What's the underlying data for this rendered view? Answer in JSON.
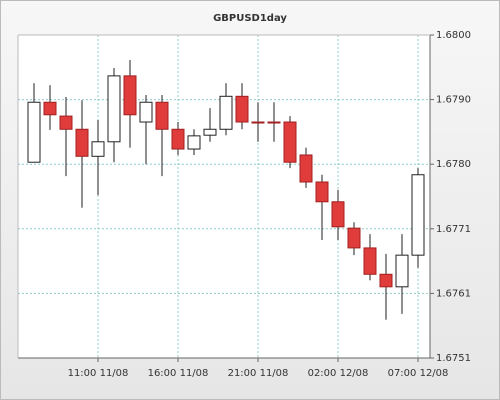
{
  "chart_data": {
    "type": "candlestick",
    "title": "GBPUSD1day",
    "categories": [
      null,
      null,
      null,
      null,
      "11:00 11/08",
      null,
      null,
      null,
      null,
      "16:00 11/08",
      null,
      null,
      null,
      null,
      "21:00 11/08",
      null,
      null,
      null,
      null,
      "02:00 12/08",
      null,
      null,
      null,
      null,
      "07:00 12/08"
    ],
    "open": [
      1.67807,
      1.67898,
      1.67877,
      1.67857,
      1.67816,
      1.67838,
      1.67938,
      1.67868,
      1.67898,
      1.67857,
      1.67827,
      1.67848,
      1.67857,
      1.67907,
      1.67868,
      1.67868,
      1.67868,
      1.67818,
      1.67777,
      1.67747,
      1.67707,
      1.67677,
      1.67637,
      1.67618,
      1.67666
    ],
    "high": [
      1.67927,
      1.67924,
      1.67906,
      1.67901,
      1.67871,
      1.6795,
      1.67962,
      1.67909,
      1.67909,
      1.67868,
      1.67857,
      1.67889,
      1.67927,
      1.67927,
      1.67898,
      1.67898,
      1.67877,
      1.67829,
      1.67788,
      1.67765,
      1.67716,
      1.67698,
      1.67668,
      1.67698,
      1.67798
    ],
    "low": [
      1.67807,
      1.67856,
      1.67786,
      1.67738,
      1.67757,
      1.67807,
      1.67829,
      1.67804,
      1.67786,
      1.67818,
      1.67818,
      1.67838,
      1.67848,
      1.67857,
      1.67838,
      1.67838,
      1.67798,
      1.67768,
      1.67689,
      1.67689,
      1.67666,
      1.67628,
      1.67568,
      1.67577,
      1.67647
    ],
    "close": [
      1.67898,
      1.67879,
      1.67857,
      1.67816,
      1.67838,
      1.67938,
      1.67879,
      1.67898,
      1.67857,
      1.67827,
      1.67847,
      1.67857,
      1.67907,
      1.67868,
      1.67867,
      1.67867,
      1.67807,
      1.67777,
      1.67747,
      1.67709,
      1.67677,
      1.67637,
      1.67618,
      1.67666,
      1.67788
    ],
    "up_color": "#ffffff",
    "down_color": "#e03c3c",
    "ylim": [
      1.6751,
      1.68
    ],
    "yticks": [
      {
        "value": 1.6751,
        "label": "1.6751"
      },
      {
        "value": 1.67608,
        "label": "1.6761"
      },
      {
        "value": 1.67706,
        "label": "1.6771"
      },
      {
        "value": 1.67804,
        "label": "1.6780"
      },
      {
        "value": 1.67902,
        "label": "1.6790"
      },
      {
        "value": 1.68,
        "label": "1.6800"
      }
    ],
    "grid": true
  }
}
